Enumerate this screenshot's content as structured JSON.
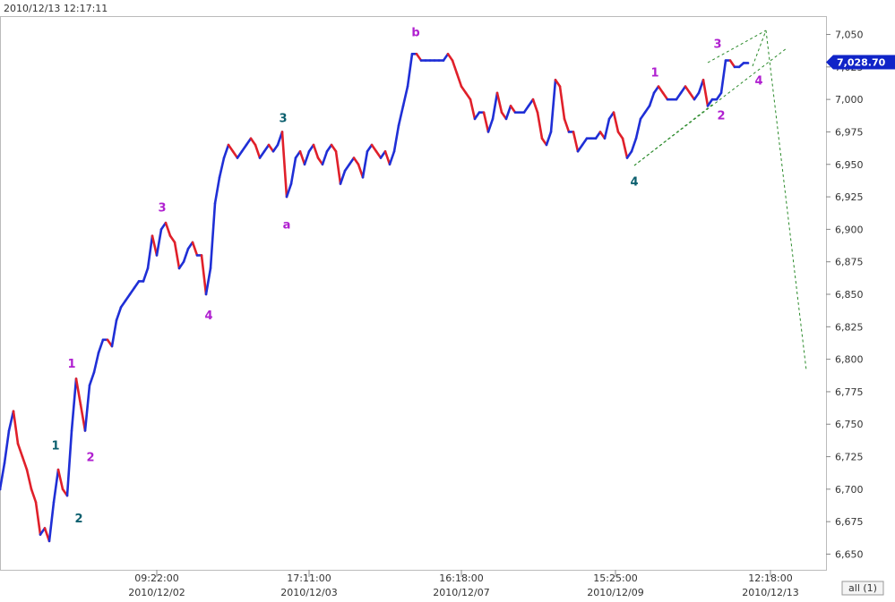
{
  "chart_data": {
    "type": "price-line",
    "header": "2010/12/13 12:17:11",
    "button": "all (1)",
    "up_color": "#1f2fd6",
    "down_color": "#e0202a",
    "values": [
      6700,
      6720,
      6745,
      6760,
      6735,
      6725,
      6715,
      6700,
      6690,
      6665,
      6670,
      6660,
      6690,
      6715,
      6700,
      6695,
      6745,
      6785,
      6765,
      6745,
      6780,
      6790,
      6805,
      6815,
      6815,
      6810,
      6830,
      6840,
      6845,
      6850,
      6855,
      6860,
      6860,
      6870,
      6895,
      6880,
      6900,
      6905,
      6895,
      6890,
      6870,
      6875,
      6885,
      6890,
      6880,
      6880,
      6850,
      6870,
      6920,
      6940,
      6955,
      6965,
      6960,
      6955,
      6960,
      6965,
      6970,
      6965,
      6955,
      6960,
      6965,
      6960,
      6965,
      6975,
      6925,
      6935,
      6955,
      6960,
      6950,
      6960,
      6965,
      6955,
      6950,
      6960,
      6965,
      6960,
      6935,
      6945,
      6950,
      6955,
      6950,
      6940,
      6960,
      6965,
      6960,
      6955,
      6960,
      6950,
      6960,
      6980,
      6995,
      7010,
      7035,
      7035,
      7030,
      7030,
      7030,
      7030,
      7030,
      7030,
      7035,
      7030,
      7020,
      7010,
      7005,
      7000,
      6985,
      6990,
      6990,
      6975,
      6985,
      7005,
      6990,
      6985,
      6995,
      6990,
      6990,
      6990,
      6995,
      7000,
      6990,
      6970,
      6965,
      6975,
      7015,
      7010,
      6985,
      6975,
      6975,
      6960,
      6965,
      6970,
      6970,
      6970,
      6975,
      6970,
      6985,
      6990,
      6975,
      6970,
      6955,
      6960,
      6970,
      6985,
      6990,
      6995,
      7005,
      7010,
      7005,
      7000,
      7000,
      7000,
      7005,
      7010,
      7005,
      7000,
      7005,
      7015,
      6995,
      7000,
      7000,
      7005,
      7030,
      7030,
      7025,
      7025,
      7028,
      7028
    ],
    "xlim": [
      0,
      184.4
    ],
    "xticks": [
      {
        "value": 35,
        "label": "09:22:00"
      },
      {
        "value": 69,
        "label": "17:11:00"
      },
      {
        "value": 103,
        "label": "16:18:00"
      },
      {
        "value": 137.4,
        "label": "15:25:00"
      },
      {
        "value": 172,
        "label": "12:18:00"
      }
    ],
    "xtick_dates": [
      "2010/12/02",
      "2010/12/03",
      "2010/12/07",
      "2010/12/09",
      "2010/12/13"
    ],
    "ylim": [
      6640,
      7060
    ],
    "yticks": [
      {
        "value": 6650,
        "label": "6,650"
      },
      {
        "value": 6675,
        "label": "6,675"
      },
      {
        "value": 6700,
        "label": "6,700"
      },
      {
        "value": 6725,
        "label": "6,725"
      },
      {
        "value": 6750,
        "label": "6,750"
      },
      {
        "value": 6775,
        "label": "6,775"
      },
      {
        "value": 6800,
        "label": "6,800"
      },
      {
        "value": 6825,
        "label": "6,825"
      },
      {
        "value": 6850,
        "label": "6,850"
      },
      {
        "value": 6875,
        "label": "6,875"
      },
      {
        "value": 6900,
        "label": "6,900"
      },
      {
        "value": 6925,
        "label": "6,925"
      },
      {
        "value": 6950,
        "label": "6,950"
      },
      {
        "value": 6975,
        "label": "6,975"
      },
      {
        "value": 7000,
        "label": "7,000"
      },
      {
        "value": 7025,
        "label": "7,025"
      },
      {
        "value": 7050,
        "label": "7,050"
      }
    ],
    "last_price": {
      "value": 7028.7,
      "label": "7,028.70"
    },
    "annotations": [
      {
        "text": "1",
        "x": 12.4,
        "y": 6734,
        "color": "#0b5f6e"
      },
      {
        "text": "2",
        "x": 17.6,
        "y": 6678,
        "color": "#0b5f6e"
      },
      {
        "text": "1",
        "x": 16,
        "y": 6797,
        "color": "#b020d0"
      },
      {
        "text": "2",
        "x": 20.2,
        "y": 6725,
        "color": "#b020d0"
      },
      {
        "text": "3",
        "x": 36.2,
        "y": 6917,
        "color": "#b020d0"
      },
      {
        "text": "4",
        "x": 46.6,
        "y": 6834,
        "color": "#b020d0"
      },
      {
        "text": "3",
        "x": 63.2,
        "y": 6986,
        "color": "#0b5f6e"
      },
      {
        "text": "a",
        "x": 64,
        "y": 6904,
        "color": "#b020d0"
      },
      {
        "text": "b",
        "x": 92.8,
        "y": 7052,
        "color": "#b020d0"
      },
      {
        "text": "4",
        "x": 141.6,
        "y": 6937,
        "color": "#0b5f6e"
      },
      {
        "text": "1",
        "x": 146.2,
        "y": 7021,
        "color": "#b020d0"
      },
      {
        "text": "2",
        "x": 161,
        "y": 6988,
        "color": "#b020d0"
      },
      {
        "text": "3",
        "x": 160.2,
        "y": 7043,
        "color": "#b020d0"
      },
      {
        "text": "4",
        "x": 169.4,
        "y": 7015,
        "color": "#b020d0"
      }
    ]
  }
}
